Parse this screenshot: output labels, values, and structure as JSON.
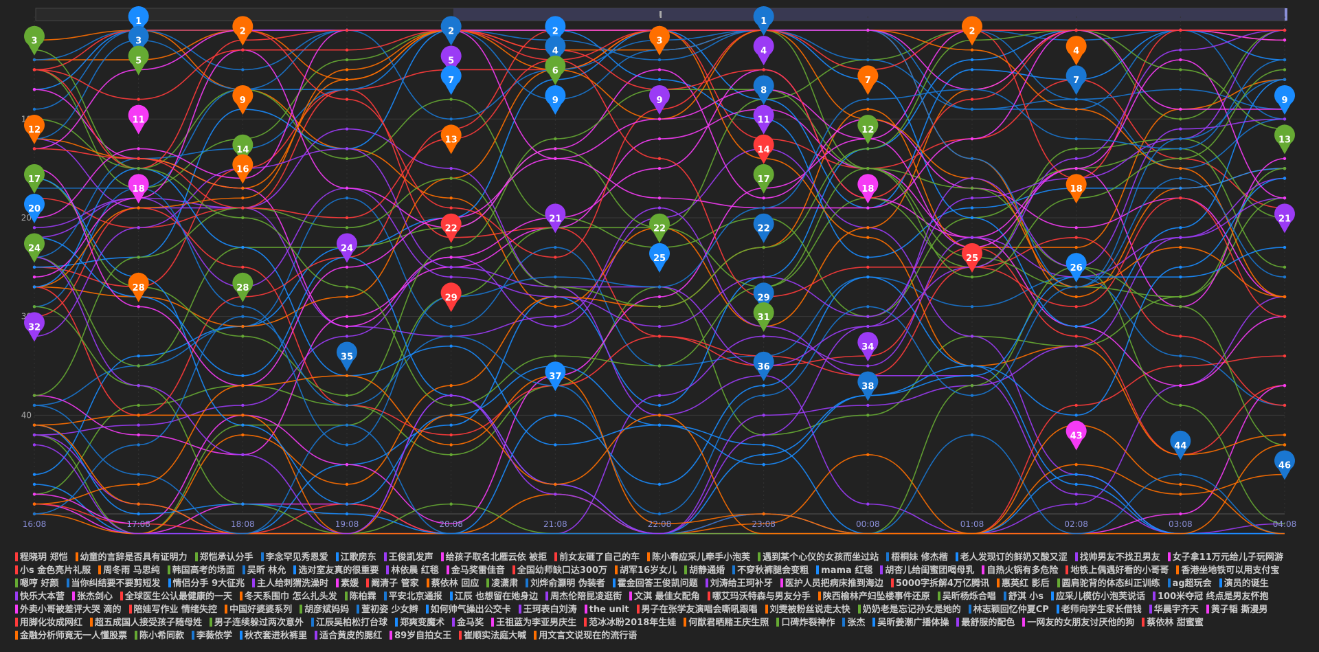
{
  "chart_data": {
    "type": "line",
    "x": [
      "16:08",
      "17:08",
      "18:08",
      "19:08",
      "20:08",
      "21:08",
      "22:08",
      "23:08",
      "00:08",
      "01:08",
      "02:08",
      "03:08",
      "04:08"
    ],
    "y_ticks": [
      10,
      20,
      30,
      40
    ],
    "ylim": [
      0,
      50
    ],
    "y_inverted": true,
    "grid": true,
    "legend_position": "bottom",
    "palette": [
      "#ff3b3b",
      "#ff6f00",
      "#66aa33",
      "#1a77d2",
      "#1a8cff",
      "#9b3bf5",
      "#f53bf5"
    ],
    "ranked_markers": [
      {
        "rank": 1,
        "x": "17:08"
      },
      {
        "rank": 1,
        "x": "23:08"
      },
      {
        "rank": 2,
        "x": "18:08"
      },
      {
        "rank": 2,
        "x": "20:08"
      },
      {
        "rank": 2,
        "x": "21:08"
      },
      {
        "rank": 2,
        "x": "01:08"
      },
      {
        "rank": 3,
        "x": "16:08"
      },
      {
        "rank": 3,
        "x": "17:08"
      },
      {
        "rank": 3,
        "x": "22:08"
      },
      {
        "rank": 4,
        "x": "21:08"
      },
      {
        "rank": 4,
        "x": "23:08"
      },
      {
        "rank": 4,
        "x": "02:08"
      },
      {
        "rank": 5,
        "x": "17:08"
      },
      {
        "rank": 5,
        "x": "20:08"
      },
      {
        "rank": 6,
        "x": "21:08"
      },
      {
        "rank": 7,
        "x": "20:08"
      },
      {
        "rank": 7,
        "x": "00:08"
      },
      {
        "rank": 7,
        "x": "02:08"
      },
      {
        "rank": 8,
        "x": "23:08"
      },
      {
        "rank": 9,
        "x": "18:08"
      },
      {
        "rank": 9,
        "x": "21:08"
      },
      {
        "rank": 9,
        "x": "22:08"
      },
      {
        "rank": 9,
        "x": "04:08"
      },
      {
        "rank": 11,
        "x": "17:08"
      },
      {
        "rank": 11,
        "x": "23:08"
      },
      {
        "rank": 12,
        "x": "16:08"
      },
      {
        "rank": 12,
        "x": "00:08"
      },
      {
        "rank": 13,
        "x": "20:08"
      },
      {
        "rank": 13,
        "x": "04:08"
      },
      {
        "rank": 14,
        "x": "18:08"
      },
      {
        "rank": 14,
        "x": "23:08"
      },
      {
        "rank": 16,
        "x": "18:08"
      },
      {
        "rank": 17,
        "x": "16:08"
      },
      {
        "rank": 17,
        "x": "23:08"
      },
      {
        "rank": 18,
        "x": "17:08"
      },
      {
        "rank": 18,
        "x": "00:08"
      },
      {
        "rank": 18,
        "x": "02:08"
      },
      {
        "rank": 20,
        "x": "16:08"
      },
      {
        "rank": 21,
        "x": "21:08"
      },
      {
        "rank": 21,
        "x": "04:08"
      },
      {
        "rank": 22,
        "x": "20:08"
      },
      {
        "rank": 22,
        "x": "22:08"
      },
      {
        "rank": 22,
        "x": "23:08"
      },
      {
        "rank": 24,
        "x": "16:08"
      },
      {
        "rank": 24,
        "x": "19:08"
      },
      {
        "rank": 25,
        "x": "22:08"
      },
      {
        "rank": 25,
        "x": "01:08"
      },
      {
        "rank": 26,
        "x": "02:08"
      },
      {
        "rank": 28,
        "x": "17:08"
      },
      {
        "rank": 28,
        "x": "18:08"
      },
      {
        "rank": 29,
        "x": "20:08"
      },
      {
        "rank": 29,
        "x": "23:08"
      },
      {
        "rank": 31,
        "x": "23:08"
      },
      {
        "rank": 32,
        "x": "16:08"
      },
      {
        "rank": 34,
        "x": "00:08"
      },
      {
        "rank": 35,
        "x": "19:08"
      },
      {
        "rank": 36,
        "x": "23:08"
      },
      {
        "rank": 37,
        "x": "21:08"
      },
      {
        "rank": 38,
        "x": "00:08"
      },
      {
        "rank": 43,
        "x": "02:08"
      },
      {
        "rank": 44,
        "x": "03:08"
      },
      {
        "rank": 46,
        "x": "04:08"
      }
    ],
    "legend": [
      "程晓玥 郑恺",
      "幼童的言辞是否具有证明力",
      "郑恺承认分手",
      "李念罕见秀恩爱",
      "江歌房东",
      "王俊凯发声",
      "给孩子取名北雁云依 被拒",
      "前女友砸了自己的车",
      "陈小春应采儿牵手小泡芙",
      "遇到某个心仪的女孩而坐过站",
      "梧桐妹 修杰楷",
      "老人发现订的鲜奶又酸又涩",
      "找帅男友不找丑男友",
      "女子拿11万元给儿子玩网游",
      "小s 金色亮片礼服",
      "周冬雨 马思纯",
      "韩国高考的场面",
      "吴昕 林允",
      "选对室友真的很重要",
      "林依晨 红毯",
      "金马奖雷佳音",
      "全国幼师缺口达300万",
      "胡军16岁女儿",
      "胡静通婚",
      "不穿秋裤腿会变粗",
      "mama 红毯",
      "胡杏儿给闺蜜团喝母乳",
      "自热火锅有多危险",
      "地铁上偶遇好看的小哥哥",
      "香港坐地铁可以用支付宝",
      "嗯哼 好颜",
      "当你纠结要不要剪短发",
      "情侣分手 9大征兆",
      "主人给刺猬洗澡时",
      "素媛",
      "阚清子 管家",
      "蔡依林 回应",
      "凌潇肃",
      "刘烨俞灏明 伪装者",
      "霍金回答王俊凯问题",
      "刘涛给王珂补牙",
      "医护人员把病床推到海边",
      "5000字拆解4万亿腾讯",
      "惠英红 影后",
      "圆肩驼背的体态纠正训练",
      "ag超玩会",
      "演员的诞生",
      "快乐大本营",
      "张杰剑心",
      "全球医生公认最健康的一天",
      "冬天系围巾 怎么扎头发",
      "陈柏霖",
      "平安北京通报",
      "江辰 也想留在她身边",
      "周杰伦陪昆凌逛街",
      "文淇 最佳女配角",
      "哪艾玛沃特森与男友分手",
      "陕西榆林产妇坠楼事件还原",
      "吴昕杨烁合唱",
      "舒淇 小s",
      "应采儿模仿小泡芙说话",
      "100米夺冠 终点是男友怀抱",
      "外卖小哥被差评大哭 滴的",
      "陪娃写作业 情绪失控",
      "中国好婆婆系列",
      "胡彦斌妈妈",
      "萱初姿 少女辫",
      "如何帅气操出公交卡",
      "王珂表白刘涛",
      "the unit",
      "男子在张学友演唱会嘶吼跟唱",
      "刘雯被粉丝说走太快",
      "奶奶老是忘记孙女是她的",
      "林志颖回忆仲夏CP",
      "老师向学生家长借钱",
      "华晨宇齐天",
      "黄子韬 撕漫男",
      "用脚化妆成网红",
      "超五成国人接受孩子随母姓",
      "男子连续躲过两次意外",
      "江辰吴柏松打台球",
      "郑爽变魔术",
      "金马奖",
      "王祖蓝为李亚男庆生",
      "范冰冰盼2018年生娃",
      "何猷君晒赌王庆生照",
      "口碑炸裂神作",
      "张杰",
      "吴昕姜潮广播体操",
      "最舒服的配色",
      "一网友的女朋友讨厌他的狗",
      "蔡依林 甜蜜蜜",
      "金融分析师竟无一人懂股票",
      "陈小希同款",
      "李薇依学",
      "秋衣套进秋裤里",
      "适合黄皮的腮红",
      "89岁自拍女王",
      "崔顺实法庭大喊",
      "用文言文说现在的流行语"
    ]
  }
}
